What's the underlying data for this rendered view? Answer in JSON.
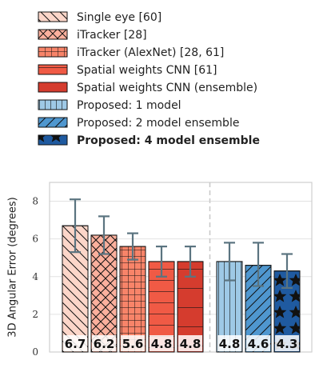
{
  "chart_data": {
    "type": "bar",
    "ylabel": "3D Angular Error (degrees)",
    "yticks": [
      0,
      2,
      4,
      6,
      8
    ],
    "ylim": [
      0,
      9
    ],
    "grid": true,
    "legend_position": "top",
    "series": [
      {
        "name": "Single eye [60]",
        "value": 6.7,
        "err": [
          5.3,
          8.1
        ],
        "color": "#fcd6c9",
        "pattern": "diag-back",
        "bold": false
      },
      {
        "name": "iTracker [28]",
        "value": 6.2,
        "err": [
          5.2,
          7.2
        ],
        "color": "#fbb09d",
        "pattern": "crosshatch",
        "bold": false
      },
      {
        "name": "iTracker (AlexNet) [28, 61]",
        "value": 5.6,
        "err": [
          4.9,
          6.3
        ],
        "color": "#f88469",
        "pattern": "grid",
        "bold": false
      },
      {
        "name": "Spatial weights CNN [61]",
        "value": 4.8,
        "err": [
          4.0,
          5.6
        ],
        "color": "#f05a45",
        "pattern": "horiz",
        "bold": false
      },
      {
        "name": "Spatial weights CNN (ensemble)",
        "value": 4.8,
        "err": [
          4.0,
          5.6
        ],
        "color": "#d53c2e",
        "pattern": "horiz-sparse",
        "bold": false
      },
      {
        "name": "Proposed: 1 model",
        "value": 4.8,
        "err": [
          3.8,
          5.8
        ],
        "color": "#9ec9e6",
        "pattern": "vert",
        "bold": false
      },
      {
        "name": "Proposed: 2 model ensemble",
        "value": 4.6,
        "err": [
          3.5,
          5.8
        ],
        "color": "#4f97cf",
        "pattern": "diag-fwd",
        "bold": false
      },
      {
        "name": "Proposed: 4 model ensemble",
        "value": 4.3,
        "err": [
          3.4,
          5.2
        ],
        "color": "#1f5aa0",
        "pattern": "stars",
        "bold": true
      }
    ],
    "value_labels": [
      "6.7",
      "6.2",
      "5.6",
      "4.8",
      "4.8",
      "4.8",
      "4.6",
      "4.3"
    ],
    "group_separator_after": 4
  }
}
